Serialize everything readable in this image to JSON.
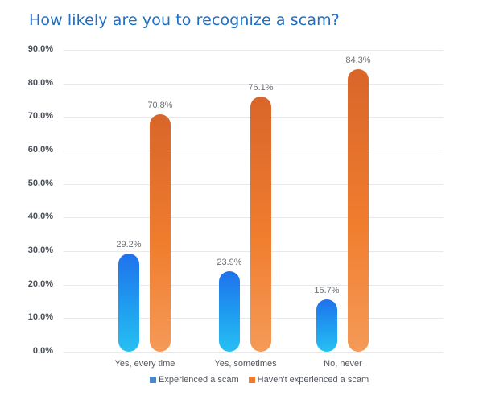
{
  "title": "How likely are you to recognize a scam?",
  "colors": {
    "title": "#1f6fc5",
    "series_blue": "#1f8cef",
    "series_orange": "#ec7a2e",
    "legend_blue": "#4a86c8",
    "legend_orange": "#ec7a2e"
  },
  "y_ticks": [
    "90.0%",
    "80.0%",
    "70.0%",
    "60.0%",
    "50.0%",
    "40.0%",
    "30.0%",
    "20.0%",
    "10.0%",
    "0.0%"
  ],
  "categories": [
    "Yes, every time",
    "Yes, sometimes",
    "No, never"
  ],
  "labels": {
    "experienced": [
      "29.2%",
      "23.9%",
      "15.7%"
    ],
    "not_experienced": [
      "70.8%",
      "76.1%",
      "84.3%"
    ]
  },
  "legend": [
    "Experienced a scam",
    "Haven't experienced a scam"
  ],
  "chart_data": {
    "type": "bar",
    "title": "How likely are you to recognize a scam?",
    "xlabel": "",
    "ylabel": "",
    "categories": [
      "Yes, every time",
      "Yes, sometimes",
      "No, never"
    ],
    "series": [
      {
        "name": "Experienced a scam",
        "values": [
          29.2,
          23.9,
          15.7
        ],
        "color": "#1f8cef"
      },
      {
        "name": "Haven't experienced a scam",
        "values": [
          70.8,
          76.1,
          84.3
        ],
        "color": "#ec7a2e"
      }
    ],
    "ylim": [
      0,
      90
    ],
    "y_tick_step": 10,
    "y_format": "percent_1dp",
    "grid": true,
    "legend_position": "bottom",
    "data_labels": true
  }
}
